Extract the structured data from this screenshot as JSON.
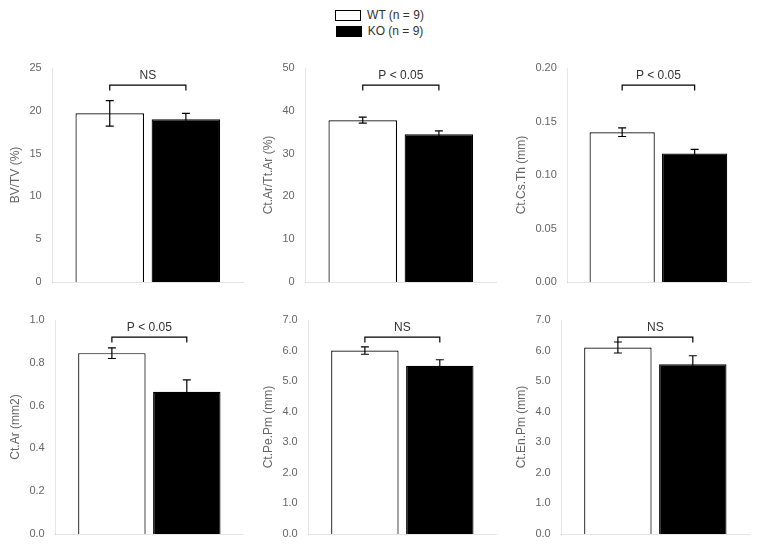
{
  "chart_data": [
    {
      "type": "bar",
      "ylabel": "BV/TV (%)",
      "categories": [
        null
      ],
      "series": [
        {
          "name": "WT (n = 9)",
          "color": "white",
          "values": [
            19.7
          ],
          "errors": [
            1.5
          ]
        },
        {
          "name": "KO (n = 9)",
          "color": "black",
          "values": [
            19.0
          ],
          "errors": [
            0.7
          ]
        }
      ],
      "ylim": [
        0,
        25
      ],
      "yticks": [
        0,
        5,
        10,
        15,
        20,
        25
      ],
      "annotations": [
        "NS"
      ],
      "grid": false,
      "legend": "top",
      "tick_labels": "y"
    },
    {
      "type": "bar",
      "ylabel": "Ct.Ar/Tt.Ar (%)",
      "categories": [
        null
      ],
      "series": [
        {
          "name": "WT (n = 9)",
          "color": "white",
          "values": [
            37.8
          ],
          "errors": [
            0.7
          ]
        },
        {
          "name": "KO (n = 9)",
          "color": "black",
          "values": [
            34.5
          ],
          "errors": [
            0.8
          ]
        }
      ],
      "ylim": [
        0,
        50
      ],
      "yticks": [
        0,
        10,
        20,
        30,
        40,
        50
      ],
      "annotations": [
        "P < 0.05"
      ],
      "grid": false,
      "legend": "top",
      "tick_labels": "y"
    },
    {
      "type": "bar",
      "ylabel": "Ct.Cs.Th (mm)",
      "categories": [
        null
      ],
      "series": [
        {
          "name": "WT (n = 9)",
          "color": "white",
          "values": [
            0.14
          ],
          "errors": [
            0.004
          ]
        },
        {
          "name": "KO (n = 9)",
          "color": "black",
          "values": [
            0.12
          ],
          "errors": [
            0.004
          ]
        }
      ],
      "ylim": [
        0,
        0.2
      ],
      "yticks": [
        {
          "value": 0.0,
          "label": "0.00"
        },
        {
          "value": 0.05,
          "label": "0.05"
        },
        {
          "value": 0.1,
          "label": "0.10"
        },
        {
          "value": 0.15,
          "label": "0.15"
        },
        {
          "value": 0.2,
          "label": "0.20"
        }
      ],
      "annotations": [
        "P < 0.05"
      ],
      "grid": false,
      "legend": "top",
      "tick_labels": "y"
    },
    {
      "type": "bar",
      "ylabel": "Ct.Ar (mm2)",
      "categories": [
        null
      ],
      "series": [
        {
          "name": "WT (n = 9)",
          "color": "white",
          "values": [
            0.845
          ],
          "errors": [
            0.025
          ]
        },
        {
          "name": "KO (n = 9)",
          "color": "black",
          "values": [
            0.665
          ],
          "errors": [
            0.055
          ]
        }
      ],
      "ylim": [
        0,
        1.0
      ],
      "yticks": [
        {
          "value": 0.0,
          "label": "0.0"
        },
        0.2,
        0.4,
        0.6,
        0.8,
        {
          "value": 1.0,
          "label": "1.0"
        }
      ],
      "annotations": [
        "P < 0.05"
      ],
      "grid": false,
      "legend": "top",
      "tick_labels": "y"
    },
    {
      "type": "bar",
      "ylabel": "Ct.Pe.Pm (mm)",
      "categories": [
        null
      ],
      "series": [
        {
          "name": "WT (n = 9)",
          "color": "white",
          "values": [
            6.0
          ],
          "errors": [
            0.12
          ]
        },
        {
          "name": "KO (n = 9)",
          "color": "black",
          "values": [
            5.5
          ],
          "errors": [
            0.2
          ]
        }
      ],
      "ylim": [
        0,
        7.0
      ],
      "yticks": [
        {
          "value": 0.0,
          "label": "0.0"
        },
        {
          "value": 1.0,
          "label": "1.0"
        },
        {
          "value": 2.0,
          "label": "2.0"
        },
        {
          "value": 3.0,
          "label": "3.0"
        },
        {
          "value": 4.0,
          "label": "4.0"
        },
        {
          "value": 5.0,
          "label": "5.0"
        },
        {
          "value": 6.0,
          "label": "6.0"
        },
        {
          "value": 7.0,
          "label": "7.0"
        }
      ],
      "annotations": [
        "NS"
      ],
      "grid": false,
      "legend": "top",
      "tick_labels": "y"
    },
    {
      "type": "bar",
      "ylabel": "Ct.En.Pm (mm)",
      "categories": [
        null
      ],
      "series": [
        {
          "name": "WT (n = 9)",
          "color": "white",
          "values": [
            6.1
          ],
          "errors": [
            0.18
          ]
        },
        {
          "name": "KO (n = 9)",
          "color": "black",
          "values": [
            5.55
          ],
          "errors": [
            0.28
          ]
        }
      ],
      "ylim": [
        0,
        7.0
      ],
      "yticks": [
        {
          "value": 0.0,
          "label": "0.0"
        },
        {
          "value": 1.0,
          "label": "1.0"
        },
        {
          "value": 2.0,
          "label": "2.0"
        },
        {
          "value": 3.0,
          "label": "3.0"
        },
        {
          "value": 4.0,
          "label": "4.0"
        },
        {
          "value": 5.0,
          "label": "5.0"
        },
        {
          "value": 6.0,
          "label": "6.0"
        },
        {
          "value": 7.0,
          "label": "7.0"
        }
      ],
      "annotations": [
        "NS"
      ],
      "grid": false,
      "legend": "top",
      "tick_labels": "y"
    }
  ]
}
